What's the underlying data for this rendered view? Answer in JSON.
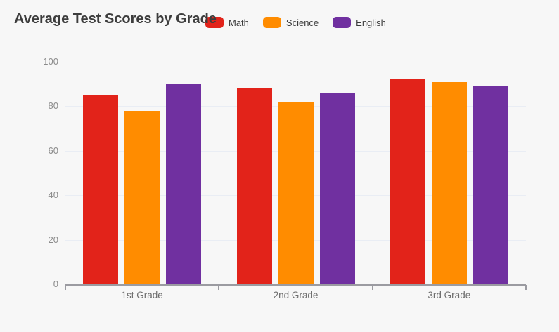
{
  "page": {
    "background": "#f7f7f7"
  },
  "chart_data": {
    "type": "bar",
    "title": "Average Test Scores by Grade",
    "categories": [
      "1st Grade",
      "2nd Grade",
      "3rd Grade"
    ],
    "series": [
      {
        "name": "Math",
        "color": "#e2231a",
        "values": [
          85,
          88,
          92
        ]
      },
      {
        "name": "Science",
        "color": "#ff8c00",
        "values": [
          78,
          82,
          91
        ]
      },
      {
        "name": "English",
        "color": "#7030a0",
        "values": [
          90,
          86,
          89
        ]
      }
    ],
    "xlabel": "",
    "ylabel": "",
    "ylim": [
      0,
      100
    ],
    "yticks": [
      0,
      20,
      40,
      60,
      80,
      100
    ],
    "grid": true,
    "legend_position": "top",
    "colors": {
      "grid": "#e9edf4",
      "axis": "#9b9ba1",
      "y_tick_label": "#8b8b8b",
      "category_label": "#6d6d6d",
      "title": "#3d3d3d",
      "legend_label": "#3a3a3a",
      "background": "#f7f7f7"
    }
  }
}
